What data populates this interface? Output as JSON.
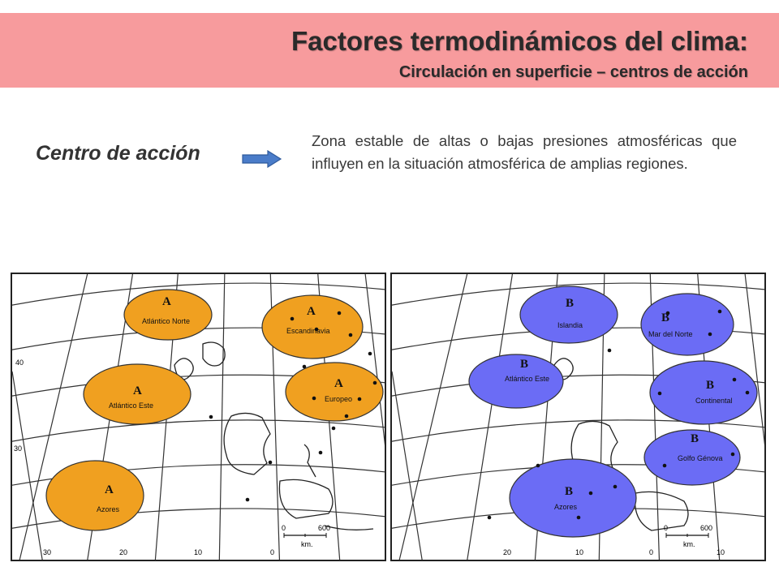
{
  "header": {
    "title": "Factores termodinámicos del clima:",
    "subtitle": "Circulación en superficie – centros de acción"
  },
  "definition": {
    "term": "Centro de acción",
    "arrow_icon": "right-arrow-icon",
    "text": "Zona estable de altas o bajas presiones atmosféricas que influyen en la situación atmosférica de amplias regiones."
  },
  "colors": {
    "banner": "#f79b9d",
    "high_pressure": "#f0a020",
    "low_pressure": "#6b6cf5",
    "arrow": "#4a7cc9"
  },
  "maps": {
    "high_pressure": {
      "centers": [
        {
          "symbol": "A",
          "name": "Atlántico Norte"
        },
        {
          "symbol": "A",
          "name": "Escandinavia"
        },
        {
          "symbol": "A",
          "name": "Atlántico Este"
        },
        {
          "symbol": "A",
          "name": "Europeo"
        },
        {
          "symbol": "A",
          "name": "Azores"
        }
      ],
      "lat_labels": [
        "40",
        "30"
      ],
      "lon_labels": [
        "30",
        "20",
        "10",
        "0"
      ],
      "scale": {
        "min": "0",
        "max": "600",
        "unit": "km."
      }
    },
    "low_pressure": {
      "centers": [
        {
          "symbol": "B",
          "name": "Islandia"
        },
        {
          "symbol": "B",
          "name": "Mar del Norte"
        },
        {
          "symbol": "B",
          "name": "Atlántico Este"
        },
        {
          "symbol": "B",
          "name": "Continental"
        },
        {
          "symbol": "B",
          "name": "Golfo Génova"
        },
        {
          "symbol": "B",
          "name": "Azores"
        }
      ],
      "lon_labels": [
        "20",
        "10",
        "0",
        "10"
      ],
      "scale": {
        "min": "0",
        "max": "600",
        "unit": "km."
      }
    }
  }
}
